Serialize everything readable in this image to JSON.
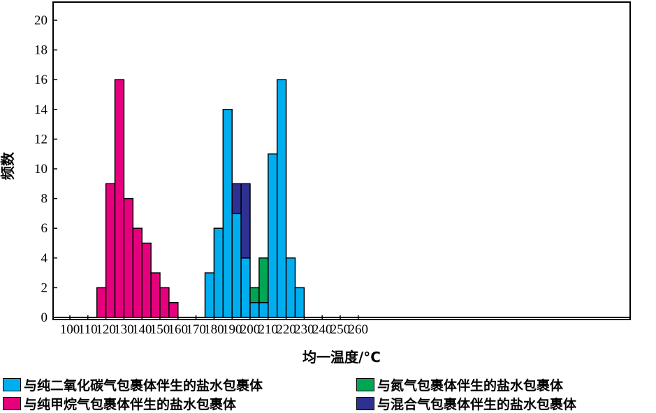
{
  "chart_data": {
    "type": "bar",
    "xlabel": "均一温度/°C",
    "ylabel": "频数",
    "xlim": [
      100,
      260
    ],
    "ylim": [
      0,
      21
    ],
    "xticks": [
      "100",
      "110",
      "120",
      "130",
      "140",
      "150",
      "160",
      "170",
      "180",
      "190",
      "200",
      "210",
      "220",
      "230",
      "240",
      "250",
      "260"
    ],
    "yticks": [
      "0",
      "2",
      "4",
      "6",
      "8",
      "10",
      "12",
      "14",
      "16",
      "18",
      "20"
    ],
    "bin_width": 5,
    "stacked": true,
    "series": [
      {
        "name": "与纯甲烷气包裹体伴生的盐水包裹体",
        "color": "#e6007e",
        "points": [
          {
            "x": 115,
            "y": 2
          },
          {
            "x": 120,
            "y": 9
          },
          {
            "x": 125,
            "y": 16
          },
          {
            "x": 130,
            "y": 8
          },
          {
            "x": 135,
            "y": 6
          },
          {
            "x": 140,
            "y": 5
          },
          {
            "x": 145,
            "y": 3
          },
          {
            "x": 150,
            "y": 2
          },
          {
            "x": 155,
            "y": 1
          }
        ]
      },
      {
        "name": "与纯二氧化碳气包裹体伴生的盐水包裹体",
        "color": "#00aeef",
        "points": [
          {
            "x": 175,
            "y": 3
          },
          {
            "x": 180,
            "y": 6
          },
          {
            "x": 185,
            "y": 14
          },
          {
            "x": 190,
            "y": 7
          },
          {
            "x": 195,
            "y": 4
          },
          {
            "x": 200,
            "y": 1
          },
          {
            "x": 205,
            "y": 1
          },
          {
            "x": 210,
            "y": 11
          },
          {
            "x": 215,
            "y": 16
          },
          {
            "x": 220,
            "y": 4
          },
          {
            "x": 225,
            "y": 2
          }
        ]
      },
      {
        "name": "与氮气包裹体伴生的盐水包裹体",
        "color": "#00a651",
        "points": [
          {
            "x": 200,
            "y": 1
          },
          {
            "x": 205,
            "y": 3
          }
        ]
      },
      {
        "name": "与混合气包裹体伴生的盐水包裹体",
        "color": "#2e3192",
        "points": [
          {
            "x": 190,
            "y": 2
          },
          {
            "x": 195,
            "y": 5
          }
        ]
      }
    ],
    "legend": [
      {
        "label": "与纯二氧化碳气包裹体伴生的盐水包裹体",
        "color": "#00aeef"
      },
      {
        "label": "与氮气包裹体伴生的盐水包裹体",
        "color": "#00a651"
      },
      {
        "label": "与纯甲烷气包裹体伴生的盐水包裹体",
        "color": "#e6007e"
      },
      {
        "label": "与混合气包裹体伴生的盐水包裹体",
        "color": "#2e3192"
      }
    ],
    "legend_position": "bottom",
    "grid": false
  }
}
